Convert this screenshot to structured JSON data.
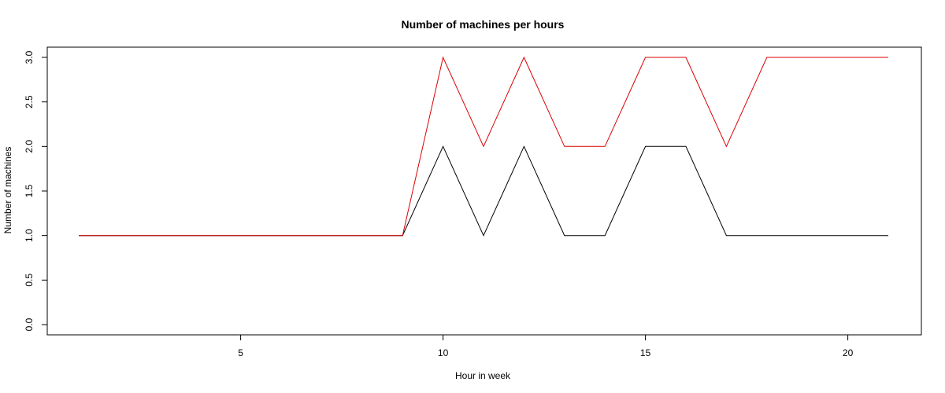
{
  "chart_data": {
    "type": "line",
    "title": "Number of machines per hours",
    "xlabel": "Hour in week",
    "ylabel": "Number of machines",
    "x": [
      1,
      2,
      3,
      4,
      5,
      6,
      7,
      8,
      9,
      10,
      11,
      12,
      13,
      14,
      15,
      16,
      17,
      18,
      19,
      20,
      21
    ],
    "xlim": [
      1,
      21
    ],
    "ylim": [
      0,
      3
    ],
    "x_ticks": [
      5,
      10,
      15,
      20
    ],
    "y_ticks": [
      0.0,
      0.5,
      1.0,
      1.5,
      2.0,
      2.5,
      3.0
    ],
    "x_tick_labels": [
      "5",
      "10",
      "15",
      "20"
    ],
    "y_tick_labels": [
      "0.0",
      "0.5",
      "1.0",
      "1.5",
      "2.0",
      "2.5",
      "3.0"
    ],
    "grid": false,
    "legend": "none",
    "series": [
      {
        "color": "#000000",
        "values": [
          1,
          1,
          1,
          1,
          1,
          1,
          1,
          1,
          1,
          2,
          1,
          2,
          1,
          1,
          2,
          2,
          1,
          1,
          1,
          1,
          1
        ]
      },
      {
        "color": "#dd0000",
        "values": [
          1,
          1,
          1,
          1,
          1,
          1,
          1,
          1,
          1,
          3,
          2,
          3,
          2,
          2,
          3,
          3,
          2,
          3,
          3,
          3,
          3
        ]
      }
    ]
  }
}
